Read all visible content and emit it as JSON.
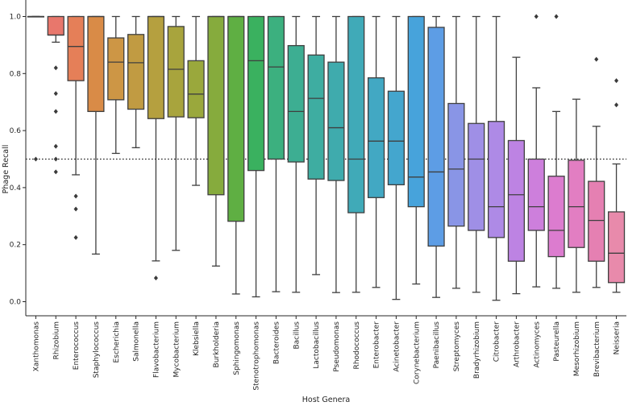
{
  "chart_data": {
    "type": "box",
    "xlabel": "Host Genera",
    "ylabel": "Phage Recall",
    "ylim": [
      -0.04,
      1.0
    ],
    "yticks": [
      "0.0",
      "0.2",
      "0.4",
      "0.6",
      "0.8",
      "1.0"
    ],
    "reference_line": 0.5,
    "categories": [
      {
        "name": "Xanthomonas",
        "color": "#e8776c",
        "q1": 1.0,
        "median": 1.0,
        "q3": 1.0,
        "whisker_low": 1.0,
        "whisker_high": 1.0,
        "outliers": [
          0.5
        ]
      },
      {
        "name": "Rhizobium",
        "color": "#e8776c",
        "q1": 0.935,
        "median": 0.935,
        "q3": 1.0,
        "whisker_low": 0.91,
        "whisker_high": 1.0,
        "outliers": [
          0.82,
          0.73,
          0.667,
          0.545,
          0.5,
          0.455
        ]
      },
      {
        "name": "Enterococcus",
        "color": "#e57f58",
        "q1": 0.775,
        "median": 0.895,
        "q3": 1.0,
        "whisker_low": 0.445,
        "whisker_high": 1.0,
        "outliers": [
          0.37,
          0.325,
          0.225
        ]
      },
      {
        "name": "Staphylococcus",
        "color": "#d98b47",
        "q1": 0.667,
        "median": 1.0,
        "q3": 1.0,
        "whisker_low": 0.167,
        "whisker_high": 1.0,
        "outliers": []
      },
      {
        "name": "Escherichia",
        "color": "#cd9645",
        "q1": 0.708,
        "median": 0.84,
        "q3": 0.925,
        "whisker_low": 0.52,
        "whisker_high": 1.0,
        "outliers": []
      },
      {
        "name": "Salmonella",
        "color": "#c19b42",
        "q1": 0.675,
        "median": 0.838,
        "q3": 0.937,
        "whisker_low": 0.54,
        "whisker_high": 1.0,
        "outliers": []
      },
      {
        "name": "Flavobacterium",
        "color": "#b5a03f",
        "q1": 0.642,
        "median": 1.0,
        "q3": 1.0,
        "whisker_low": 0.143,
        "whisker_high": 1.0,
        "outliers": [
          0.083
        ]
      },
      {
        "name": "Mycobacterium",
        "color": "#a8a43d",
        "q1": 0.648,
        "median": 0.815,
        "q3": 0.965,
        "whisker_low": 0.18,
        "whisker_high": 1.0,
        "outliers": []
      },
      {
        "name": "Klebsiella",
        "color": "#9aa83c",
        "q1": 0.645,
        "median": 0.728,
        "q3": 0.845,
        "whisker_low": 0.408,
        "whisker_high": 1.0,
        "outliers": []
      },
      {
        "name": "Burkholderia",
        "color": "#86ab3d",
        "q1": 0.375,
        "median": 1.0,
        "q3": 1.0,
        "whisker_low": 0.125,
        "whisker_high": 1.0,
        "outliers": []
      },
      {
        "name": "Sphingomonas",
        "color": "#5faf43",
        "q1": 0.282,
        "median": 1.0,
        "q3": 1.0,
        "whisker_low": 0.027,
        "whisker_high": 1.0,
        "outliers": []
      },
      {
        "name": "Stenotrophomonas",
        "color": "#3ab15f",
        "q1": 0.46,
        "median": 0.845,
        "q3": 1.0,
        "whisker_low": 0.017,
        "whisker_high": 1.0,
        "outliers": []
      },
      {
        "name": "Bacteroides",
        "color": "#3cb07f",
        "q1": 0.5,
        "median": 0.823,
        "q3": 1.0,
        "whisker_low": 0.035,
        "whisker_high": 1.0,
        "outliers": []
      },
      {
        "name": "Bacillus",
        "color": "#3dae92",
        "q1": 0.49,
        "median": 0.667,
        "q3": 0.898,
        "whisker_low": 0.033,
        "whisker_high": 1.0,
        "outliers": []
      },
      {
        "name": "Lactobacillus",
        "color": "#3eada1",
        "q1": 0.43,
        "median": 0.713,
        "q3": 0.865,
        "whisker_low": 0.095,
        "whisker_high": 1.0,
        "outliers": []
      },
      {
        "name": "Pseudomonas",
        "color": "#3fabad",
        "q1": 0.425,
        "median": 0.61,
        "q3": 0.84,
        "whisker_low": 0.032,
        "whisker_high": 1.0,
        "outliers": []
      },
      {
        "name": "Rhodococcus",
        "color": "#40aab8",
        "q1": 0.312,
        "median": 0.5,
        "q3": 1.0,
        "whisker_low": 0.033,
        "whisker_high": 1.0,
        "outliers": []
      },
      {
        "name": "Enterobacter",
        "color": "#42a8c3",
        "q1": 0.365,
        "median": 0.563,
        "q3": 0.785,
        "whisker_low": 0.05,
        "whisker_high": 1.0,
        "outliers": []
      },
      {
        "name": "Acinetobacter",
        "color": "#44a6ce",
        "q1": 0.41,
        "median": 0.563,
        "q3": 0.738,
        "whisker_low": 0.008,
        "whisker_high": 1.0,
        "outliers": []
      },
      {
        "name": "Corynebacterium",
        "color": "#47a3db",
        "q1": 0.333,
        "median": 0.437,
        "q3": 1.0,
        "whisker_low": 0.062,
        "whisker_high": 1.0,
        "outliers": []
      },
      {
        "name": "Paenibacillus",
        "color": "#5d9de5",
        "q1": 0.195,
        "median": 0.455,
        "q3": 0.962,
        "whisker_low": 0.015,
        "whisker_high": 1.0,
        "outliers": []
      },
      {
        "name": "Streptomyces",
        "color": "#8995e6",
        "q1": 0.265,
        "median": 0.465,
        "q3": 0.695,
        "whisker_low": 0.047,
        "whisker_high": 1.0,
        "outliers": []
      },
      {
        "name": "Bradyrhizobium",
        "color": "#9f8fe6",
        "q1": 0.25,
        "median": 0.5,
        "q3": 0.625,
        "whisker_low": 0.033,
        "whisker_high": 1.0,
        "outliers": []
      },
      {
        "name": "Citrobacter",
        "color": "#ae8ae6",
        "q1": 0.225,
        "median": 0.333,
        "q3": 0.632,
        "whisker_low": 0.005,
        "whisker_high": 1.0,
        "outliers": []
      },
      {
        "name": "Arthrobacter",
        "color": "#bd83e3",
        "q1": 0.142,
        "median": 0.375,
        "q3": 0.565,
        "whisker_low": 0.028,
        "whisker_high": 0.857,
        "outliers": []
      },
      {
        "name": "Actinomyces",
        "color": "#cd7fdc",
        "q1": 0.25,
        "median": 0.333,
        "q3": 0.5,
        "whisker_low": 0.052,
        "whisker_high": 0.75,
        "outliers": [
          1.0
        ]
      },
      {
        "name": "Pasteurella",
        "color": "#dc7ccf",
        "q1": 0.158,
        "median": 0.25,
        "q3": 0.44,
        "whisker_low": 0.047,
        "whisker_high": 0.667,
        "outliers": [
          1.0
        ]
      },
      {
        "name": "Mesorhizobium",
        "color": "#e27ec2",
        "q1": 0.19,
        "median": 0.333,
        "q3": 0.496,
        "whisker_low": 0.033,
        "whisker_high": 0.71,
        "outliers": []
      },
      {
        "name": "Brevibacterium",
        "color": "#e580b2",
        "q1": 0.142,
        "median": 0.285,
        "q3": 0.422,
        "whisker_low": 0.05,
        "whisker_high": 0.615,
        "outliers": [
          0.85
        ]
      },
      {
        "name": "Neisseria",
        "color": "#e88aab",
        "q1": 0.067,
        "median": 0.17,
        "q3": 0.315,
        "whisker_low": 0.033,
        "whisker_high": 0.483,
        "outliers": [
          0.775,
          0.69
        ]
      }
    ]
  }
}
